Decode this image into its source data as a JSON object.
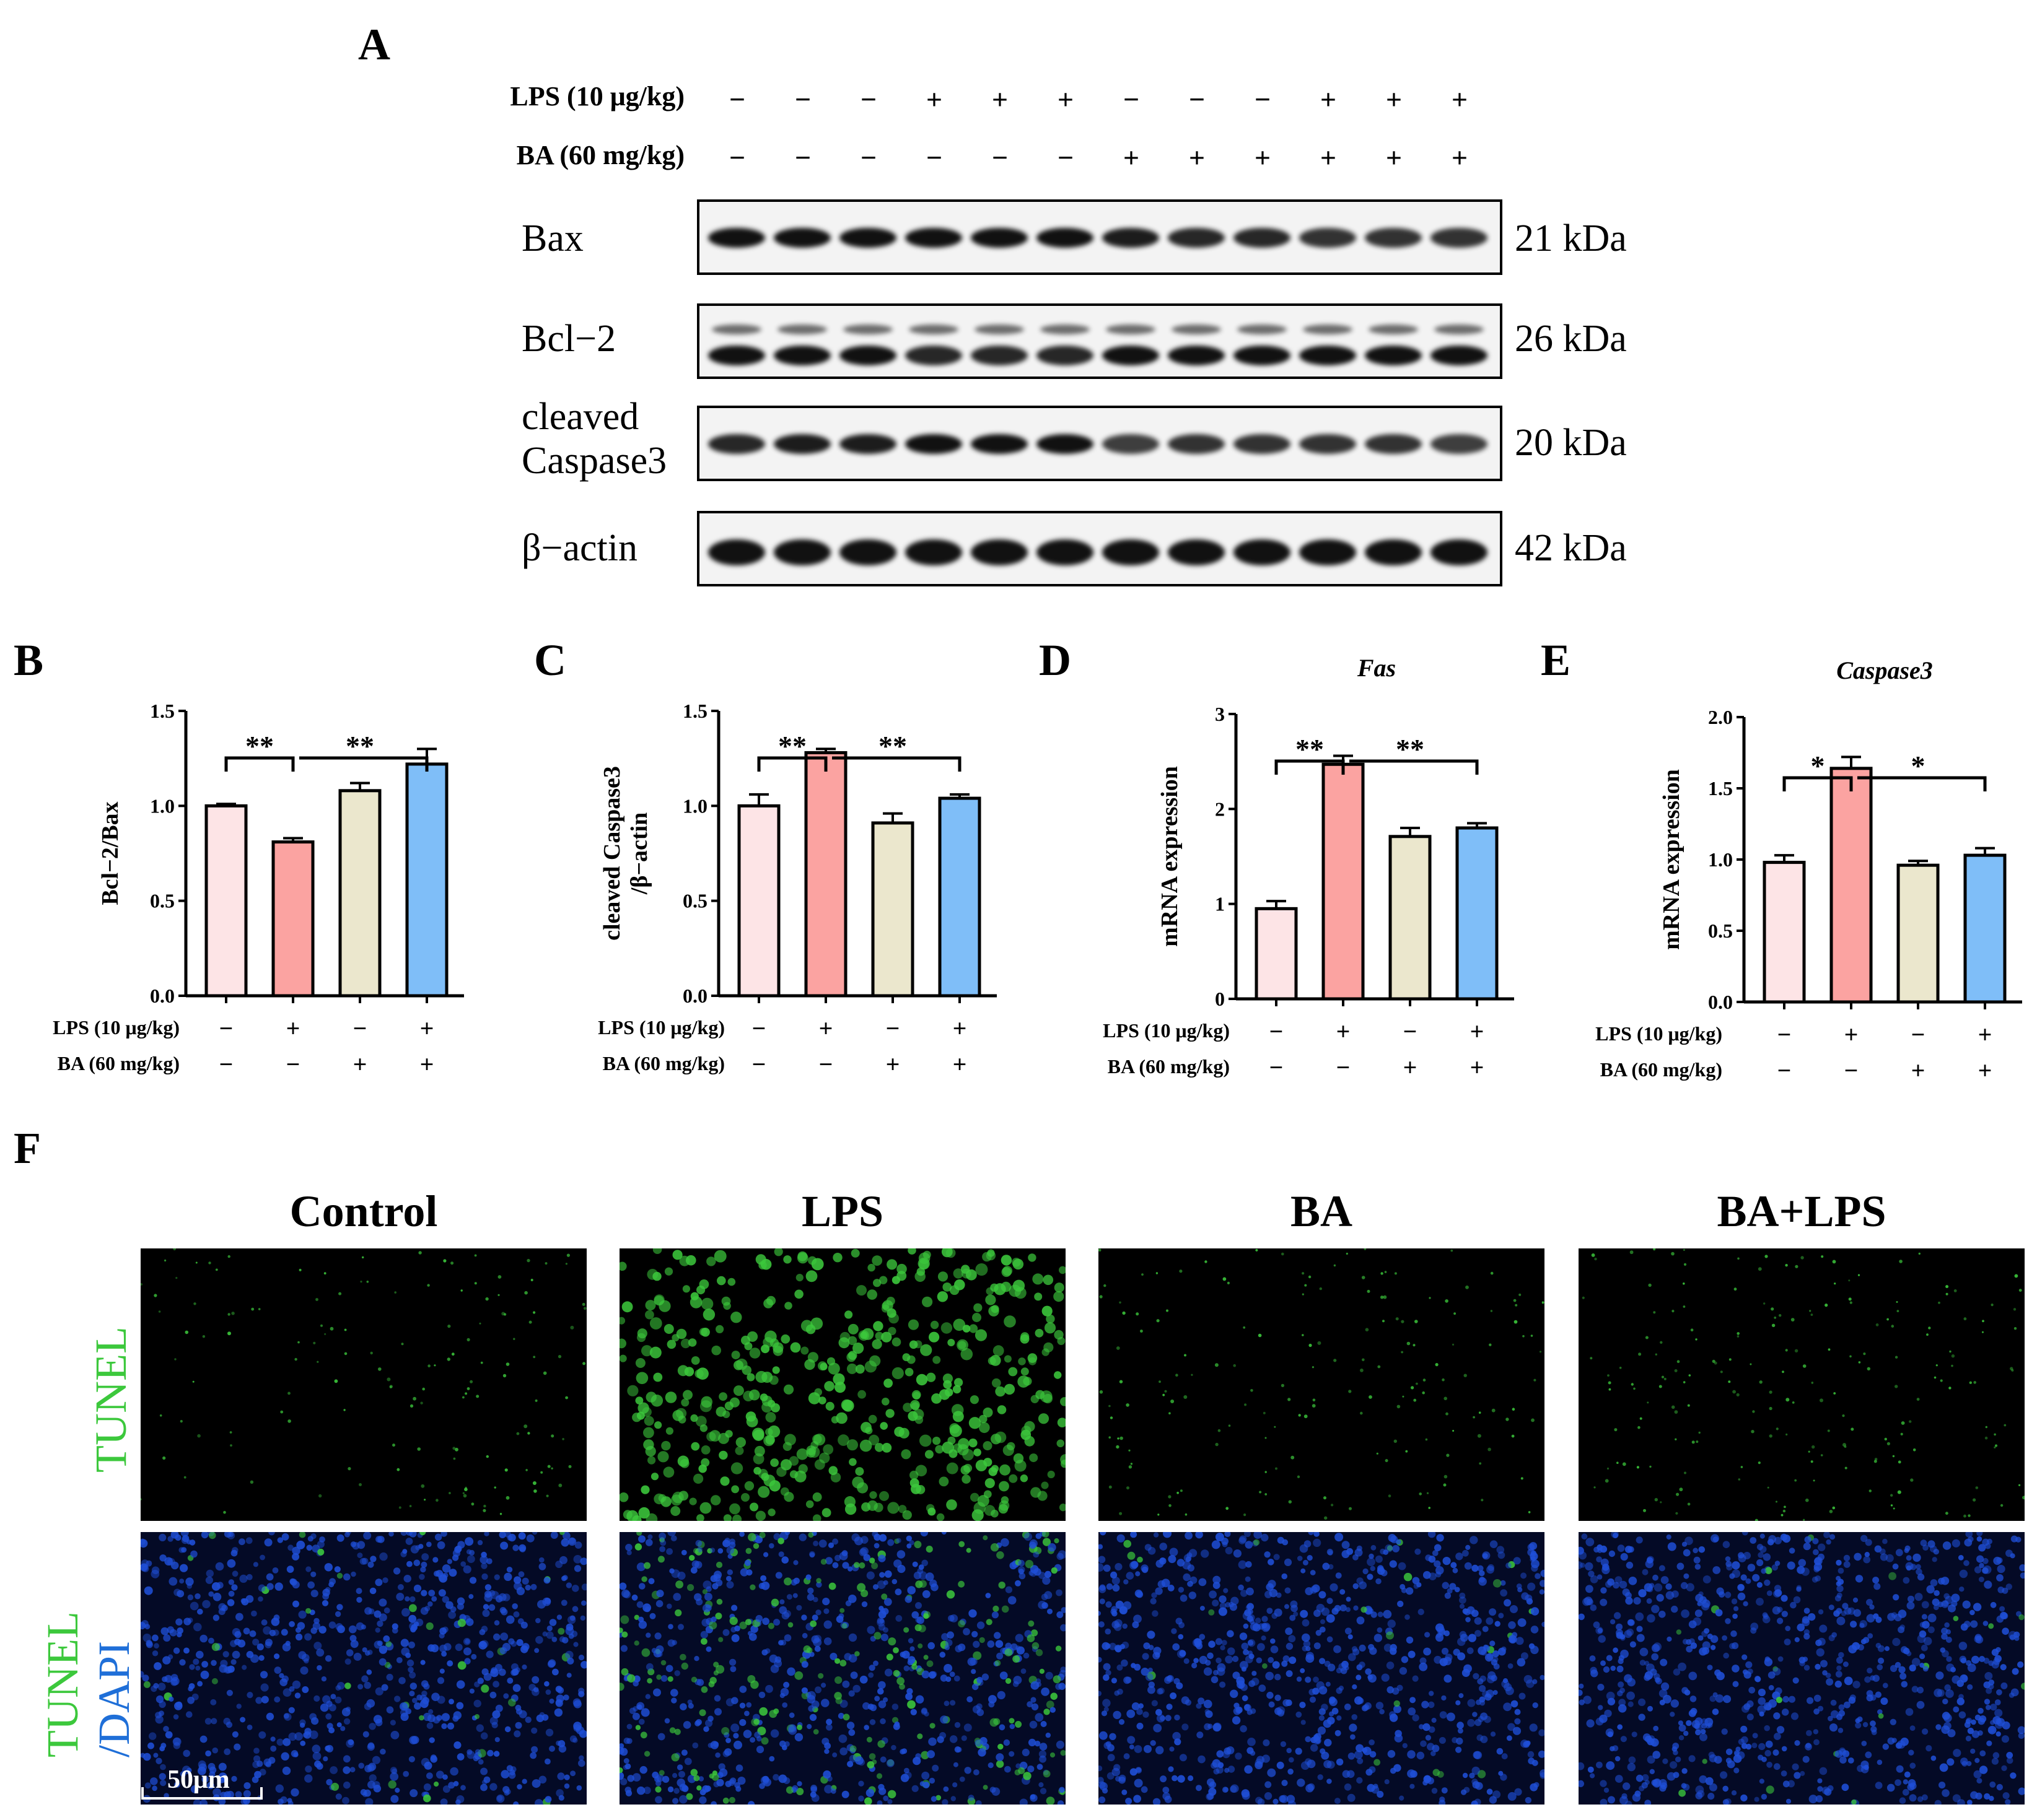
{
  "panel_letters": {
    "a": "A",
    "b": "B",
    "c": "C",
    "d": "D",
    "e": "E",
    "f": "F"
  },
  "panel_a": {
    "treatments": [
      {
        "label": "LPS (10 μg/kg)",
        "signs": [
          "−",
          "−",
          "−",
          "+",
          "+",
          "+",
          "−",
          "−",
          "−",
          "+",
          "+",
          "+"
        ]
      },
      {
        "label": "BA (60 mg/kg)",
        "signs": [
          "−",
          "−",
          "−",
          "−",
          "−",
          "−",
          "+",
          "+",
          "+",
          "+",
          "+",
          "+"
        ]
      }
    ],
    "blots": [
      {
        "name": "Bax",
        "kda": "21 kDa"
      },
      {
        "name": "Bcl−2",
        "kda": "26 kDa"
      },
      {
        "name_line1": "cleaved",
        "name_line2": "Caspase3",
        "kda": "20 kDa"
      },
      {
        "name": "β−actin",
        "kda": "42 kDa"
      }
    ]
  },
  "group_colors": [
    "#fde4e6",
    "#fba3a1",
    "#ebe7cd",
    "#7fbef8"
  ],
  "chart_data": [
    {
      "type": "bar",
      "id": "B",
      "ylabel": "Bcl−2/Bax",
      "ylim": [
        0,
        1.5
      ],
      "yticks": [
        "0.0",
        "0.5",
        "1.0",
        "1.5"
      ],
      "values": [
        1.0,
        0.81,
        1.08,
        1.22
      ],
      "errors": [
        0.01,
        0.02,
        0.04,
        0.08
      ],
      "treatments": [
        {
          "label": "LPS (10 μg/kg)",
          "signs": [
            "−",
            "+",
            "−",
            "+"
          ]
        },
        {
          "label": "BA (60 mg/kg)",
          "signs": [
            "−",
            "−",
            "+",
            "+"
          ]
        }
      ],
      "significance": [
        "**",
        "**"
      ]
    },
    {
      "type": "bar",
      "id": "C",
      "ylabel_line1": "cleaved Caspase3",
      "ylabel_line2": "/β−actin",
      "ylim": [
        0,
        1.5
      ],
      "yticks": [
        "0.0",
        "0.5",
        "1.0",
        "1.5"
      ],
      "values": [
        1.0,
        1.28,
        0.91,
        1.04
      ],
      "errors": [
        0.06,
        0.02,
        0.05,
        0.02
      ],
      "treatments": [
        {
          "label": "LPS (10 μg/kg)",
          "signs": [
            "−",
            "+",
            "−",
            "+"
          ]
        },
        {
          "label": "BA (60 mg/kg)",
          "signs": [
            "−",
            "−",
            "+",
            "+"
          ]
        }
      ],
      "significance": [
        "**",
        "**"
      ]
    },
    {
      "type": "bar",
      "id": "D",
      "title": "Fas",
      "ylabel": "mRNA expression",
      "ylim": [
        0,
        3
      ],
      "yticks": [
        "0",
        "1",
        "2",
        "3"
      ],
      "values": [
        0.95,
        2.47,
        1.71,
        1.8
      ],
      "errors": [
        0.08,
        0.09,
        0.09,
        0.05
      ],
      "treatments": [
        {
          "label": "LPS (10 μg/kg)",
          "signs": [
            "−",
            "+",
            "−",
            "+"
          ]
        },
        {
          "label": "BA (60 mg/kg)",
          "signs": [
            "−",
            "−",
            "+",
            "+"
          ]
        }
      ],
      "significance": [
        "**",
        "**"
      ]
    },
    {
      "type": "bar",
      "id": "E",
      "title": "Caspase3",
      "ylabel": "mRNA expression",
      "ylim": [
        0,
        2
      ],
      "yticks": [
        "0.0",
        "0.5",
        "1.0",
        "1.5",
        "2.0"
      ],
      "values": [
        0.98,
        1.64,
        0.96,
        1.03
      ],
      "errors": [
        0.05,
        0.08,
        0.03,
        0.05
      ],
      "treatments": [
        {
          "label": "LPS (10 μg/kg)",
          "signs": [
            "−",
            "+",
            "−",
            "+"
          ]
        },
        {
          "label": "BA (60 mg/kg)",
          "signs": [
            "−",
            "−",
            "+",
            "+"
          ]
        }
      ],
      "significance": [
        "*",
        "*"
      ]
    }
  ],
  "panel_f": {
    "columns": [
      "Control",
      "LPS",
      "BA",
      "BA+LPS"
    ],
    "row1_label": "TUNEL",
    "row2_label_line1": "TUNEL",
    "row2_label_line2": "/DAPI",
    "scale_bar": "50μm",
    "tunel_color": "#3cc83c",
    "dapi_color": "#1f4fd8"
  }
}
